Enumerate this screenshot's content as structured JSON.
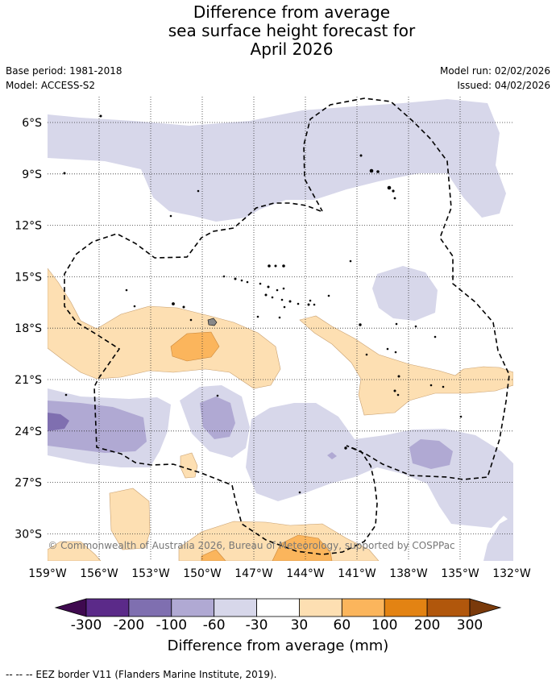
{
  "title_lines": [
    "Difference from average",
    "sea surface height forecast for",
    "April 2026"
  ],
  "meta": {
    "base_period": "Base period: 1981-2018",
    "model": "Model: ACCESS-S2",
    "model_run": "Model run: 02/02/2026",
    "issued": "Issued: 04/02/2026"
  },
  "map": {
    "lat_labels": [
      "6°S",
      "9°S",
      "12°S",
      "15°S",
      "18°S",
      "21°S",
      "24°S",
      "27°S",
      "30°S"
    ],
    "lon_labels": [
      "159°W",
      "156°W",
      "153°W",
      "150°W",
      "147°W",
      "144°W",
      "141°W",
      "138°W",
      "135°W",
      "132°W"
    ],
    "copyright": "© Commonwealth of Australia 2026, Bureau of Meteorology, supported by COSPPac"
  },
  "colorbar": {
    "tick_labels": [
      "-300",
      "-200",
      "-100",
      "-60",
      "-30",
      "30",
      "60",
      "100",
      "200",
      "300"
    ],
    "colors": {
      "below_min": "#3f0a4f",
      "m300_m200": "#5b2a89",
      "m200_m100": "#7f6fb0",
      "m100_m60": "#b0a9d3",
      "m60_m30": "#d7d7ea",
      "neutral": "#ffffff",
      "p30_p60": "#fddfb2",
      "p60_p100": "#fbb55c",
      "p100_p200": "#e38313",
      "p200_p300": "#b1570c",
      "above_max": "#7a3a0b"
    },
    "title": "Difference from average (mm)"
  },
  "footnote": "--  --  -- EEZ border V11 (Flanders Marine Institute, 2019)."
}
